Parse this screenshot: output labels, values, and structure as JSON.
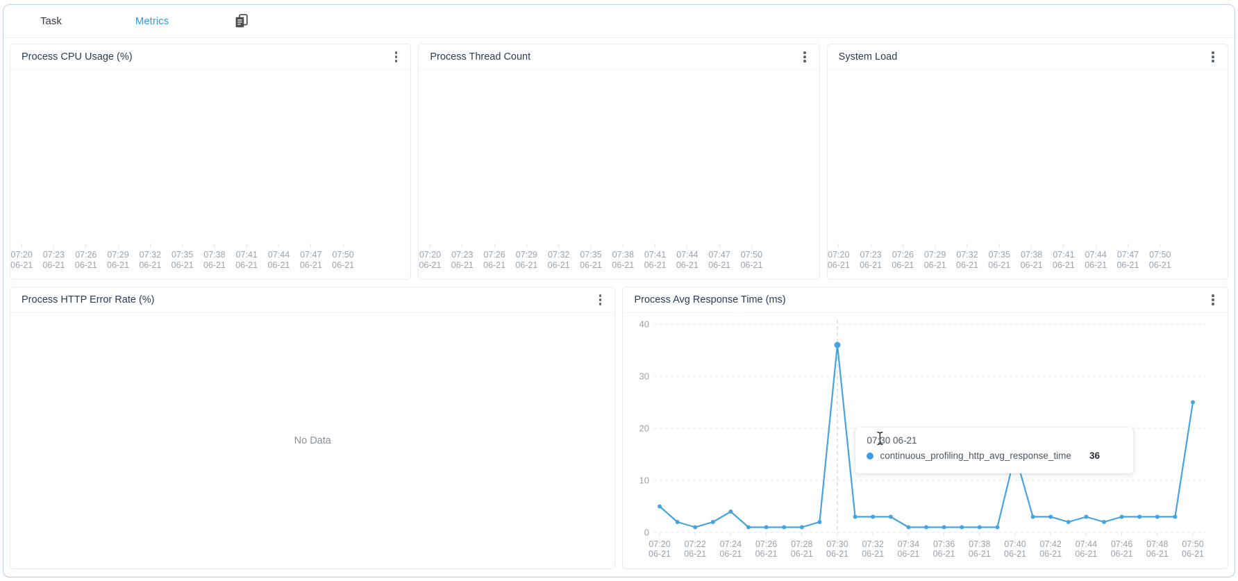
{
  "window": {
    "tabs": [
      {
        "label": "Task",
        "active": false
      },
      {
        "label": "Metrics",
        "active": true
      }
    ]
  },
  "panels": {
    "cpu_usage": {
      "title": "Process CPU Usage (%)"
    },
    "thread_count": {
      "title": "Process Thread Count"
    },
    "system_load": {
      "title": "System Load"
    },
    "http_error_rate": {
      "title": "Process HTTP Error Rate (%)",
      "empty_text": "No Data"
    },
    "avg_response_time": {
      "title": "Process Avg Response Time (ms)"
    }
  },
  "top_axis": {
    "date": "06-21",
    "times": [
      "07:20",
      "07:23",
      "07:26",
      "07:29",
      "07:32",
      "07:35",
      "07:38",
      "07:41",
      "07:44",
      "07:47",
      "07:50"
    ]
  },
  "chart_data": {
    "type": "line",
    "title": "Process Avg Response Time (ms)",
    "x": [
      "07:20",
      "07:21",
      "07:22",
      "07:23",
      "07:24",
      "07:25",
      "07:26",
      "07:27",
      "07:28",
      "07:29",
      "07:30",
      "07:31",
      "07:32",
      "07:33",
      "07:34",
      "07:35",
      "07:36",
      "07:37",
      "07:38",
      "07:39",
      "07:40",
      "07:41",
      "07:42",
      "07:43",
      "07:44",
      "07:45",
      "07:46",
      "07:47",
      "07:48",
      "07:49",
      "07:50"
    ],
    "x_date": "06-21",
    "x_label_every": 2,
    "series": [
      {
        "name": "continuous_profiling_http_avg_response_time",
        "color": "#45a4de",
        "values": [
          5,
          2,
          1,
          2,
          4,
          1,
          1,
          1,
          1,
          2,
          36,
          3,
          3,
          3,
          1,
          1,
          1,
          1,
          1,
          1,
          15,
          3,
          3,
          2,
          3,
          2,
          3,
          3,
          3,
          3,
          25
        ]
      }
    ],
    "ylim": [
      0,
      40
    ],
    "yticks": [
      0,
      10,
      20,
      30,
      40
    ],
    "grid": true,
    "legend_position": "none",
    "crosshair_index": 10
  },
  "tooltip": {
    "time": "07:30 06-21",
    "series": "continuous_profiling_http_avg_response_time",
    "value": "36",
    "dot_color": "#3ba0e8"
  },
  "colors": {
    "accent_blue": "#2f9ae8",
    "line_blue": "#45a4de",
    "outer_border": "#b7cfe9",
    "panel_border": "#e9ebee",
    "axis_text": "#98a2ad",
    "title_text": "#2c3c50",
    "no_data_text": "#8b9096"
  }
}
